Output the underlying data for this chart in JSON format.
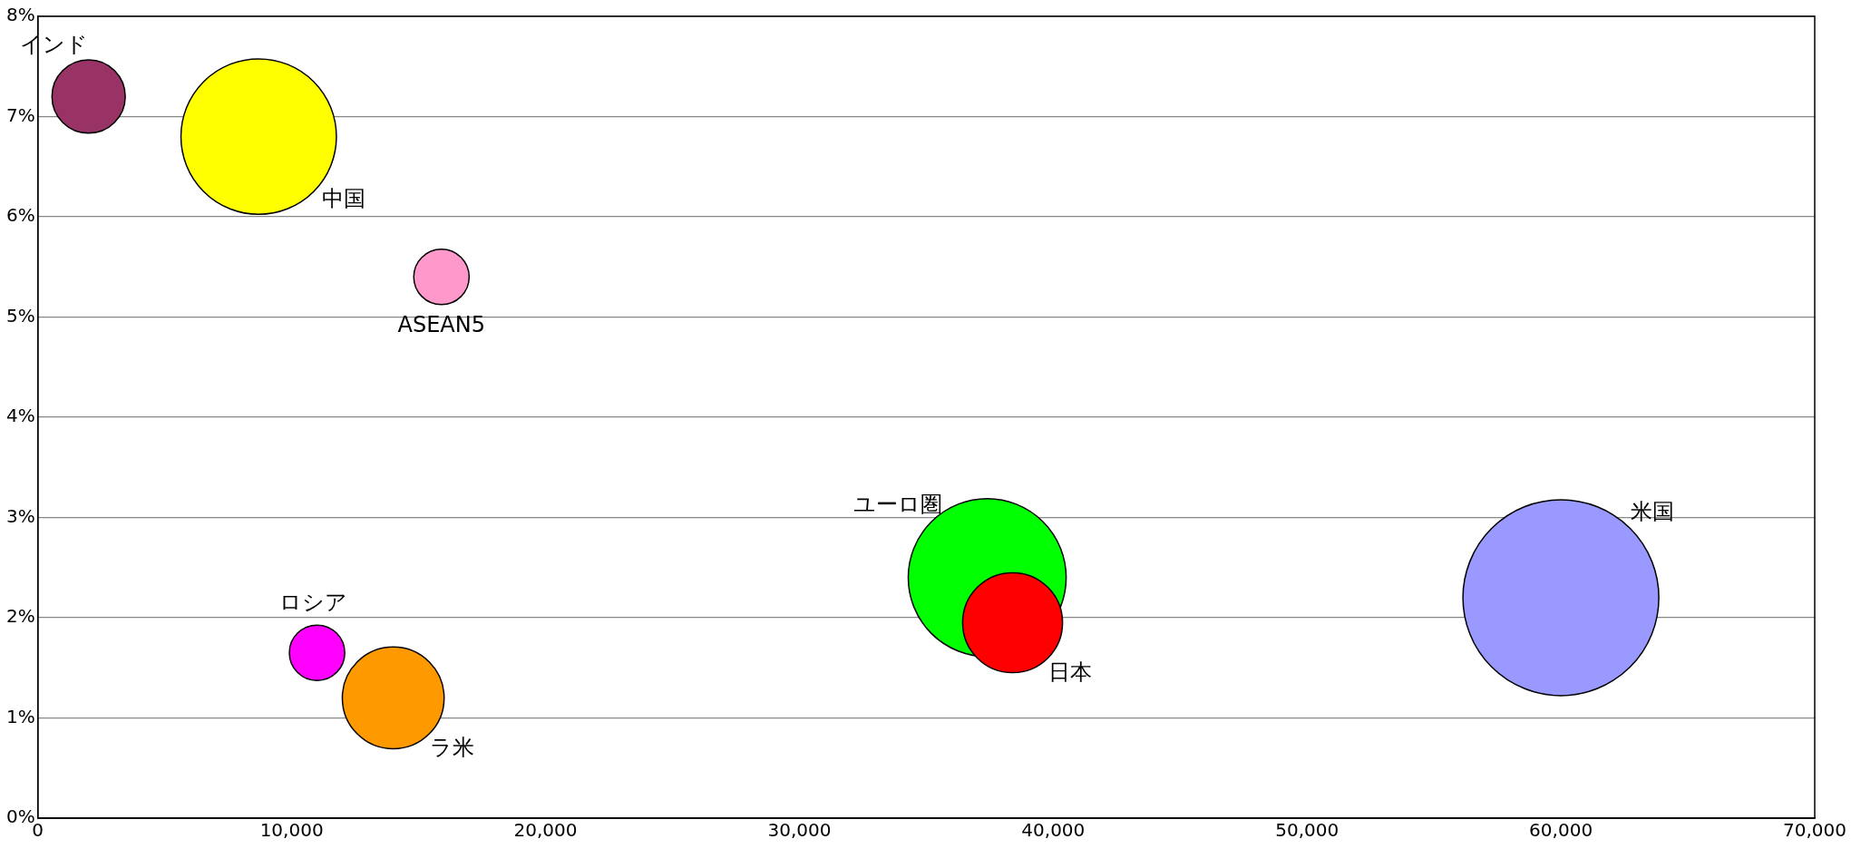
{
  "chart_data": {
    "type": "bubble",
    "legend": false,
    "grid": "y",
    "xlim": [
      0,
      70000
    ],
    "xticks": [
      0,
      {
        "value": 10000,
        "label": "10,000"
      },
      {
        "value": 20000,
        "label": "20,000"
      },
      {
        "value": 30000,
        "label": "30,000"
      },
      {
        "value": 40000,
        "label": "40,000"
      },
      {
        "value": 50000,
        "label": "50,000"
      },
      {
        "value": 60000,
        "label": "60,000"
      },
      {
        "value": 70000,
        "label": "70,000"
      }
    ],
    "ylim": [
      0,
      8
    ],
    "yticks": [
      {
        "value": 0,
        "label": "0%"
      },
      {
        "value": 1,
        "label": "1%"
      },
      {
        "value": 2,
        "label": "2%"
      },
      {
        "value": 3,
        "label": "3%"
      },
      {
        "value": 4,
        "label": "4%"
      },
      {
        "value": 5,
        "label": "5%"
      },
      {
        "value": 6,
        "label": "6%"
      },
      {
        "value": 7,
        "label": "7%"
      },
      {
        "value": 8,
        "label": "8%"
      }
    ],
    "series": [
      {
        "name": "インド",
        "color": "#993366",
        "x": [
          2000
        ],
        "values": [
          7.2
        ],
        "sizes": [
          0.14
        ]
      },
      {
        "name": "中国",
        "color": "#ffff00",
        "x": [
          8700
        ],
        "values": [
          6.8
        ],
        "sizes": [
          0.63
        ]
      },
      {
        "name": "ASEAN5",
        "color": "#ff99cc",
        "x": [
          15900
        ],
        "values": [
          5.4
        ],
        "sizes": [
          0.08
        ]
      },
      {
        "name": "ユーロ圏",
        "color": "#00ff00",
        "x": [
          37400
        ],
        "values": [
          2.4
        ],
        "sizes": [
          0.65
        ]
      },
      {
        "name": "日本",
        "color": "#ff0000",
        "x": [
          38400
        ],
        "values": [
          1.95
        ],
        "sizes": [
          0.26
        ]
      },
      {
        "name": "米国",
        "color": "#9999ff",
        "x": [
          60000
        ],
        "values": [
          2.2
        ],
        "sizes": [
          1
        ]
      },
      {
        "name": "ロシア",
        "color": "#ff00ff",
        "x": [
          11000
        ],
        "values": [
          1.65
        ],
        "sizes": [
          0.08
        ]
      },
      {
        "name": "ラ米",
        "color": "#ff9900",
        "x": [
          14000
        ],
        "values": [
          1.2
        ],
        "sizes": [
          0.27
        ]
      }
    ]
  }
}
